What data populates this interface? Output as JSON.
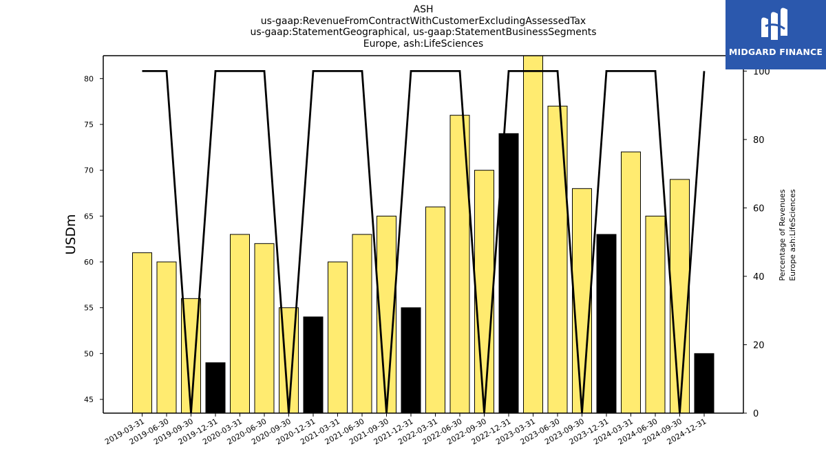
{
  "header": {
    "title_lines": [
      "ASH",
      "us-gaap:RevenueFromContractWithCustomerExcludingAssessedTax",
      "us-gaap:StatementGeographical, us-gaap:StatementBusinessSegments",
      "Europe, ash:LifeSciences"
    ]
  },
  "logo": {
    "text": "MIDGARD FINANCE",
    "bg_color": "#2b58ad",
    "icon": "midgard-logo-icon"
  },
  "chart_data": {
    "type": "bar",
    "categories": [
      "2019-03-31",
      "2019-06-30",
      "2019-09-30",
      "2019-12-31",
      "2020-03-31",
      "2020-06-30",
      "2020-09-30",
      "2020-12-31",
      "2021-03-31",
      "2021-06-30",
      "2021-09-30",
      "2021-12-31",
      "2022-03-31",
      "2022-06-30",
      "2022-09-30",
      "2022-12-31",
      "2023-03-31",
      "2023-06-30",
      "2023-09-30",
      "2023-12-31",
      "2024-03-31",
      "2024-06-30",
      "2024-09-30",
      "2024-12-31"
    ],
    "values": [
      61,
      60,
      56,
      49,
      63,
      62,
      55,
      54,
      60,
      63,
      65,
      55,
      66,
      76,
      70,
      74,
      83,
      77,
      68,
      63,
      72,
      65,
      69,
      50
    ],
    "bar_colors": [
      "#ffeb70",
      "#ffeb70",
      "#ffeb70",
      "#000000",
      "#ffeb70",
      "#ffeb70",
      "#ffeb70",
      "#000000",
      "#ffeb70",
      "#ffeb70",
      "#ffeb70",
      "#000000",
      "#ffeb70",
      "#ffeb70",
      "#ffeb70",
      "#000000",
      "#ffeb70",
      "#ffeb70",
      "#ffeb70",
      "#000000",
      "#ffeb70",
      "#ffeb70",
      "#ffeb70",
      "#000000"
    ],
    "ylabel": "USDm",
    "ylim": [
      43.5,
      82.5
    ],
    "yticks": [
      45,
      50,
      55,
      60,
      65,
      70,
      75,
      80
    ],
    "y2": {
      "label_lines": [
        "Percentage of Revenues",
        "Europe ash:LifeSciences"
      ],
      "ylim": [
        0,
        104.5
      ],
      "yticks": [
        0,
        20,
        40,
        60,
        80,
        100
      ],
      "values": [
        100,
        100,
        0,
        100,
        100,
        100,
        0,
        100,
        100,
        100,
        0,
        100,
        100,
        100,
        0,
        100,
        100,
        100,
        0,
        100,
        100,
        100,
        0,
        100
      ]
    },
    "grid": false,
    "legend": "none"
  }
}
